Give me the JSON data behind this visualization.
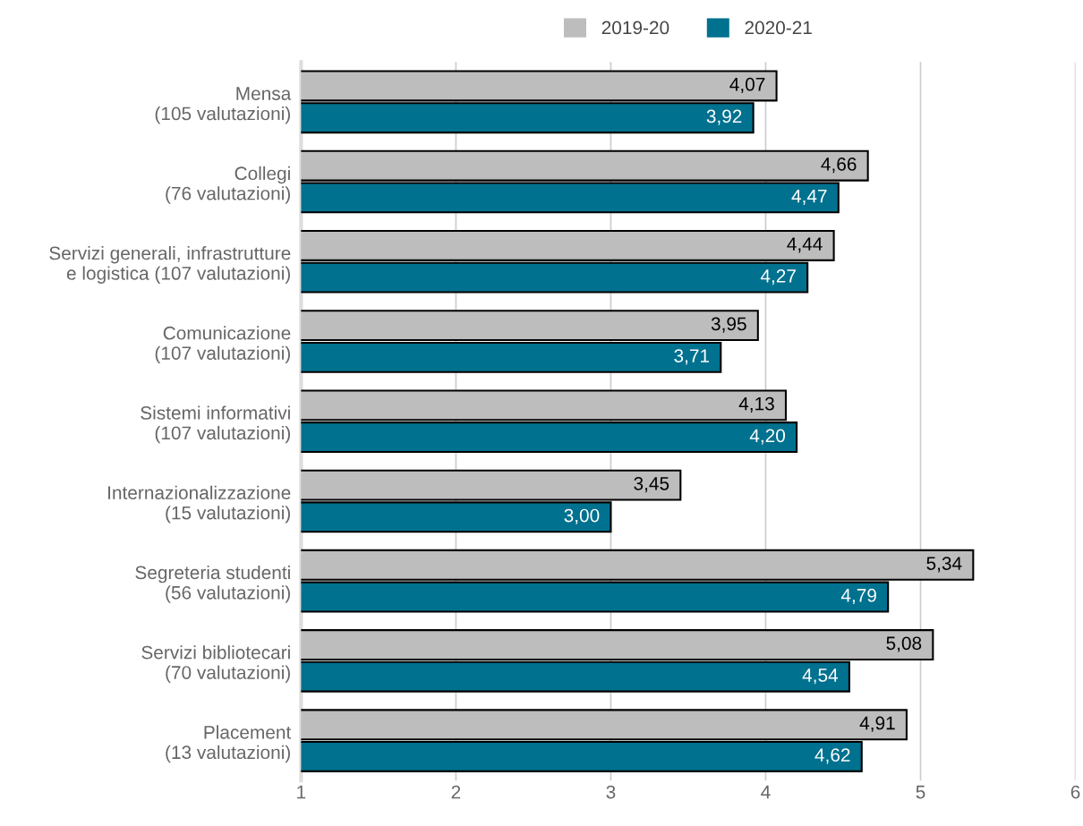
{
  "chart_data": {
    "type": "bar",
    "orientation": "horizontal",
    "categories": [
      "Mensa\n(105 valutazioni)",
      "Collegi\n(76 valutazioni)",
      "Servizi generali, infrastrutture\ne logistica (107 valutazioni)",
      "Comunicazione\n(107 valutazioni)",
      "Sistemi informativi\n(107 valutazioni)",
      "Internazionalizzazione\n(15 valutazioni)",
      "Segreteria studenti\n(56 valutazioni)",
      "Servizi bibliotecari\n(70 valutazioni)",
      "Placement\n(13 valutazioni)"
    ],
    "series": [
      {
        "name": "2019-20",
        "color": "#bdbdbd",
        "values": [
          4.07,
          4.66,
          4.44,
          3.95,
          4.13,
          3.45,
          5.34,
          5.08,
          4.91
        ],
        "value_labels": [
          "4,07",
          "4,66",
          "4,44",
          "3,95",
          "4,13",
          "3,45",
          "5,34",
          "5,08",
          "4,91"
        ]
      },
      {
        "name": "2020-21",
        "color": "#00718f",
        "values": [
          3.92,
          4.47,
          4.27,
          3.71,
          4.2,
          3.0,
          4.79,
          4.54,
          4.62
        ],
        "value_labels": [
          "3,92",
          "4,47",
          "4,27",
          "3,71",
          "4,20",
          "3,00",
          "4,79",
          "4,54",
          "4,62"
        ]
      }
    ],
    "xlim": [
      1,
      6
    ],
    "xticks": [
      1,
      2,
      3,
      4,
      5,
      6
    ],
    "grid": "x",
    "legend": "top"
  }
}
